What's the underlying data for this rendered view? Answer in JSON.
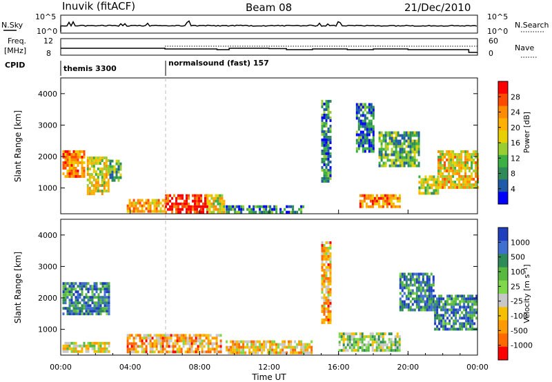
{
  "header": {
    "radar": "Inuvik (fitACF)",
    "beam": "Beam 08",
    "date": "21/Dec/2010"
  },
  "top_panels": {
    "nsky_label": "N.Sky",
    "nsky_ticks": [
      "10^5",
      "10^0"
    ],
    "nsearch_label": "N.Search",
    "nsearch_ticks": [
      "10^5",
      "10^0"
    ],
    "freq_label_1": "Freq.",
    "freq_label_2": "[MHz]",
    "freq_ticks": [
      "12",
      "8"
    ],
    "nave_label": "Nave",
    "nave_ticks": [
      "60",
      "0"
    ],
    "cpid_label": "CPID",
    "cpid_segments": [
      {
        "label": "themis 3300",
        "start_hour": 0.0
      },
      {
        "label": "normalsound (fast) 157",
        "start_hour": 6.0
      }
    ]
  },
  "x_axis": {
    "title": "Time UT",
    "ticks": [
      "00:00",
      "04:00",
      "08:00",
      "12:00",
      "16:00",
      "20:00",
      "00:00"
    ]
  },
  "chart_data": [
    {
      "type": "heatmap",
      "name": "power",
      "ylabel": "Slant Range [km]",
      "yticks": [
        1000,
        2000,
        3000,
        4000
      ],
      "ylim": [
        180,
        4500
      ],
      "xlim_hours": [
        0,
        24
      ],
      "colorbar_label": "Power [dB]",
      "colorbar_ticks": [
        "28",
        "24",
        "20",
        "16",
        "12",
        "8",
        "4"
      ],
      "colorbar_colors": [
        "#ff0000",
        "#ff4a00",
        "#ff8c00",
        "#ffb000",
        "#e8d000",
        "#9acd32",
        "#3cb043",
        "#2e8b57",
        "#1e5aa8",
        "#0000ff"
      ],
      "regions": [
        {
          "t0": 0.1,
          "t1": 1.4,
          "r0": 1400,
          "r1": 2200,
          "level": 0.75
        },
        {
          "t0": 1.5,
          "t1": 2.7,
          "r0": 800,
          "r1": 2000,
          "level": 0.55
        },
        {
          "t0": 2.8,
          "t1": 3.4,
          "r0": 1200,
          "r1": 1900,
          "level": 0.35
        },
        {
          "t0": 3.8,
          "t1": 6.0,
          "r0": 250,
          "r1": 650,
          "level": 0.65
        },
        {
          "t0": 6.0,
          "t1": 8.4,
          "r0": 250,
          "r1": 800,
          "level": 0.95
        },
        {
          "t0": 8.4,
          "t1": 9.4,
          "r0": 250,
          "r1": 800,
          "level": 0.55
        },
        {
          "t0": 9.5,
          "t1": 14.0,
          "r0": 250,
          "r1": 450,
          "level": 0.25
        },
        {
          "t0": 15.0,
          "t1": 15.5,
          "r0": 1200,
          "r1": 3800,
          "level": 0.25
        },
        {
          "t0": 17.0,
          "t1": 18.0,
          "r0": 2200,
          "r1": 3700,
          "level": 0.2
        },
        {
          "t0": 17.2,
          "t1": 19.5,
          "r0": 400,
          "r1": 800,
          "level": 0.75
        },
        {
          "t0": 18.3,
          "t1": 20.6,
          "r0": 1700,
          "r1": 2800,
          "level": 0.35
        },
        {
          "t0": 20.6,
          "t1": 21.7,
          "r0": 800,
          "r1": 1400,
          "level": 0.45
        },
        {
          "t0": 21.7,
          "t1": 24.0,
          "r0": 1000,
          "r1": 2200,
          "level": 0.6
        }
      ]
    },
    {
      "type": "heatmap",
      "name": "velocity",
      "ylabel": "Slant Range [km]",
      "yticks": [
        1000,
        2000,
        3000,
        4000
      ],
      "ylim": [
        180,
        4500
      ],
      "xlim_hours": [
        0,
        24
      ],
      "colorbar_label": "Velocity [m s⁻¹]",
      "colorbar_ticks": [
        "1000",
        "500",
        "100",
        "25",
        "-25",
        "-100",
        "-500",
        "-1000"
      ],
      "colorbar_colors": [
        "#1f3fbf",
        "#3f6fcf",
        "#2e8b57",
        "#59b83f",
        "#7ed84a",
        "#c8c8c8",
        "#f5c000",
        "#ff9a00",
        "#ff6a00",
        "#ff0000"
      ],
      "regions": [
        {
          "t0": 0.1,
          "t1": 2.8,
          "r0": 1500,
          "r1": 2500,
          "level": 0.8
        },
        {
          "t0": 0.1,
          "t1": 2.8,
          "r0": 250,
          "r1": 600,
          "level": 0.45
        },
        {
          "t0": 3.8,
          "t1": 9.2,
          "r0": 250,
          "r1": 850,
          "level": 0.3
        },
        {
          "t0": 9.5,
          "t1": 14.5,
          "r0": 250,
          "r1": 650,
          "level": 0.35
        },
        {
          "t0": 15.0,
          "t1": 15.5,
          "r0": 1200,
          "r1": 3800,
          "level": 0.3
        },
        {
          "t0": 16.0,
          "t1": 19.5,
          "r0": 300,
          "r1": 900,
          "level": 0.55
        },
        {
          "t0": 19.5,
          "t1": 21.5,
          "r0": 1600,
          "r1": 2800,
          "level": 0.8
        },
        {
          "t0": 21.5,
          "t1": 24.0,
          "r0": 1000,
          "r1": 2100,
          "level": 0.8
        }
      ]
    }
  ]
}
